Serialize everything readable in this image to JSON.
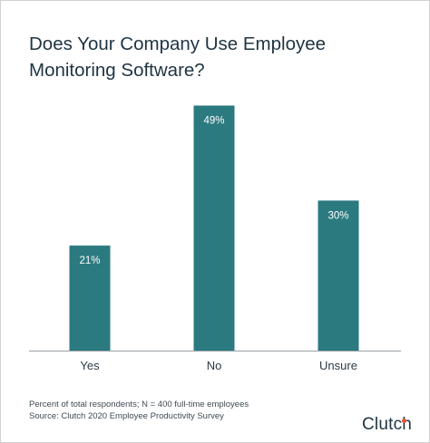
{
  "chart_data": {
    "type": "bar",
    "title": "Does Your Company Use Employee Monitoring Software?",
    "categories": [
      "Yes",
      "No",
      "Unsure"
    ],
    "values": [
      21,
      49,
      30
    ],
    "value_labels": [
      "21%",
      "49%",
      "30%"
    ],
    "xlabel": "",
    "ylabel": "",
    "bar_color": "#2b7a80",
    "grid": false,
    "legend": "none"
  },
  "footnotes": {
    "note": "Percent of total respondents; N = 400 full-time employees",
    "source": "Source: Clutch 2020 Employee Productivity Survey"
  },
  "brand": {
    "logo_text": "Clutch",
    "logo_dot_color": "#e8503a"
  }
}
